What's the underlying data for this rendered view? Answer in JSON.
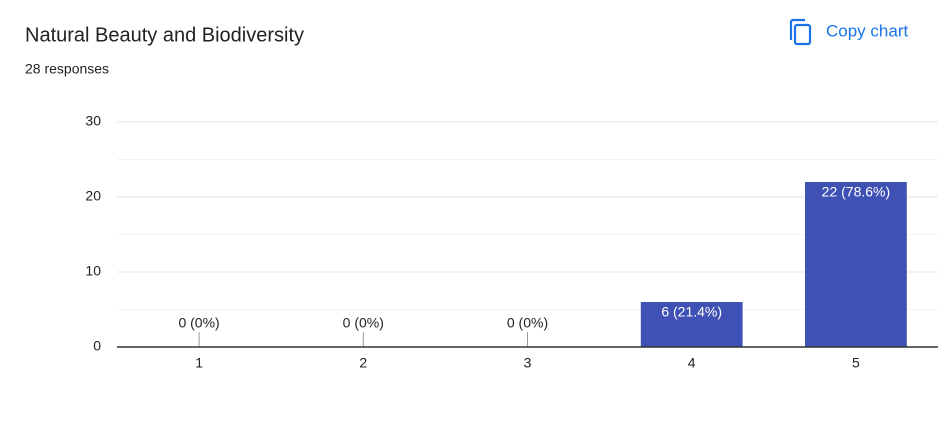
{
  "chart_data": {
    "type": "bar",
    "title": "Natural Beauty and Biodiversity",
    "subtitle": "28 responses",
    "action": "Copy chart",
    "categories": [
      "1",
      "2",
      "3",
      "4",
      "5"
    ],
    "values": [
      0,
      0,
      0,
      6,
      22
    ],
    "value_labels": [
      "0 (0%)",
      "0 (0%)",
      "0 (0%)",
      "6 (21.4%)",
      "22 (78.6%)"
    ],
    "color": "#3f51b5",
    "ylim": [
      0,
      30
    ],
    "yticks": [
      0,
      10,
      20,
      30
    ],
    "minor_yticks": [
      5,
      15,
      25
    ],
    "grid": true
  }
}
